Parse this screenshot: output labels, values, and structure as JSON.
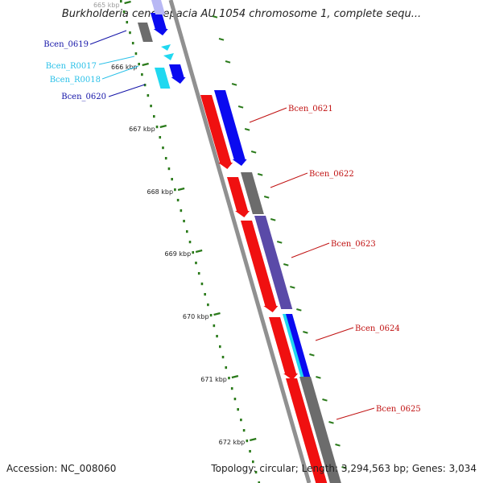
{
  "title": "Burkholderia cenocepacia AU 1054 chromosome 1, complete sequ...",
  "accession_label": "Accession: NC_008060",
  "summary_label": "Topology: circular; Length: 3,294,563 bp; Genes: 3,034",
  "ruler": {
    "ticks": [
      {
        "label": "665 kbp",
        "kbp": 665
      },
      {
        "label": "666 kbp",
        "kbp": 666
      },
      {
        "label": "667 kbp",
        "kbp": 667
      },
      {
        "label": "668 kbp",
        "kbp": 668
      },
      {
        "label": "669 kbp",
        "kbp": 669
      },
      {
        "label": "670 kbp",
        "kbp": 670
      },
      {
        "label": "671 kbp",
        "kbp": 671
      },
      {
        "label": "672 kbp",
        "kbp": 672
      }
    ]
  },
  "colors": {
    "blue": "#0a0af0",
    "light_blue": "#b8b8f4",
    "cyan": "#20d8f0",
    "red": "#f01010",
    "dark_gray": "#6c6c6c",
    "slate": "#5a4aa8",
    "backbone": "#909090",
    "tick": "#2a7a1a",
    "label_blue": "#1414a8",
    "label_cyan": "#28c0e8",
    "label_red": "#c01010"
  },
  "genes_left": [
    {
      "label": "Bcen_0619",
      "color": "label_blue"
    },
    {
      "label": "Bcen_R0017",
      "color": "label_cyan"
    },
    {
      "label": "Bcen_R0018",
      "color": "label_cyan"
    },
    {
      "label": "Bcen_0620",
      "color": "label_blue"
    }
  ],
  "genes_right": [
    {
      "label": "Bcen_0621",
      "color": "label_red"
    },
    {
      "label": "Bcen_0622",
      "color": "label_red"
    },
    {
      "label": "Bcen_0623",
      "color": "label_red"
    },
    {
      "label": "Bcen_0624",
      "color": "label_red"
    },
    {
      "label": "Bcen_0625",
      "color": "label_red"
    }
  ]
}
